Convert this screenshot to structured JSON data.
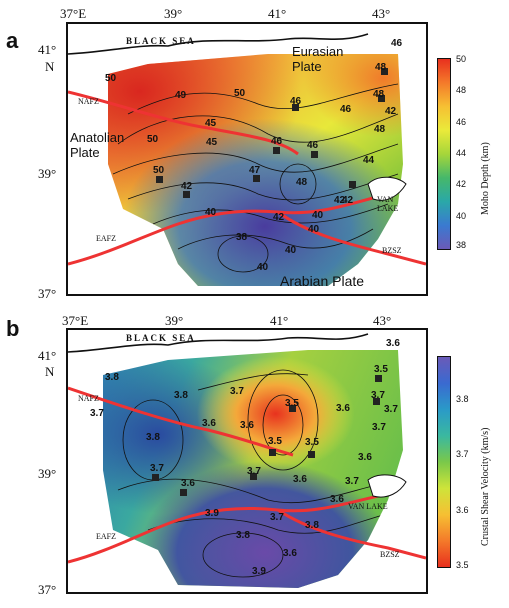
{
  "panels": [
    {
      "letter": "a",
      "lon_ticks": [
        "37°E",
        "39°",
        "41°",
        "43°"
      ],
      "lat_ticks": [
        "41°",
        "N",
        "39°",
        "37°"
      ],
      "sea_label": "BLACK SEA",
      "plates": {
        "eurasian": "Eurasian\nPlate",
        "anatolian": "Anatolian\nPlate",
        "arabian": "Arabian Plate"
      },
      "faults": {
        "nafz": "NAFZ",
        "eafz": "EAFZ",
        "bzsz": "BZSZ"
      },
      "lake": "VAN\nLAKE",
      "contour_labels": [
        "46",
        "50",
        "48",
        "49",
        "50",
        "48",
        "46",
        "46",
        "45",
        "45",
        "50",
        "46",
        "46",
        "42",
        "50",
        "42",
        "47",
        "48",
        "48",
        "42",
        "44",
        "40",
        "42",
        "40",
        "42",
        "38",
        "40",
        "40",
        "40"
      ],
      "colorbar": {
        "title": "Moho Depth (km)",
        "ticks": [
          "50",
          "48",
          "46",
          "44",
          "42",
          "40",
          "38"
        ]
      }
    },
    {
      "letter": "b",
      "lon_ticks": [
        "37°E",
        "39°",
        "41°",
        "43°"
      ],
      "lat_ticks": [
        "41°",
        "N",
        "39°",
        "37°"
      ],
      "sea_label": "BLACK SEA",
      "faults": {
        "nafz": "NAFZ",
        "eafz": "EAFZ",
        "bzsz": "BZSZ"
      },
      "lake": "VAN LAKE",
      "contour_labels": [
        "3.6",
        "3.8",
        "3.5",
        "3.8",
        "3.7",
        "3.7",
        "3.5",
        "3.7",
        "3.6",
        "3.7",
        "3.8",
        "3.6",
        "3.6",
        "3.5",
        "3.5",
        "3.7",
        "3.7",
        "3.6",
        "3.6",
        "3.6",
        "3.7",
        "3.7",
        "3.6",
        "3.9",
        "3.8",
        "3.7",
        "3.8",
        "3.6",
        "3.9"
      ],
      "colorbar": {
        "title": "Crustal Shear Velocity (km/s)",
        "ticks": [
          "3.8",
          "3.7",
          "3.6",
          "3.5"
        ]
      }
    }
  ]
}
